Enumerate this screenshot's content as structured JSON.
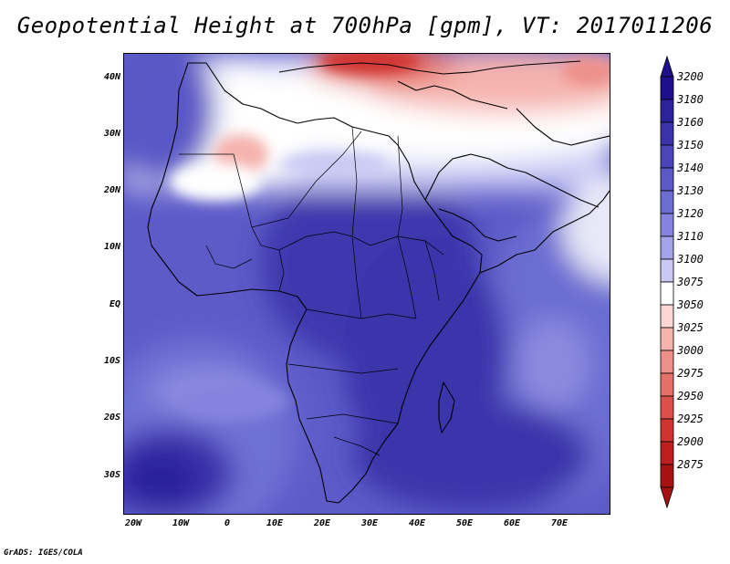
{
  "title": "Geopotential Height at 700hPa [gpm], VT: 2017011206",
  "credit": "GrADS: IGES/COLA",
  "axes": {
    "lat_labels": [
      "40N",
      "30N",
      "20N",
      "10N",
      "EQ",
      "10S",
      "20S",
      "30S"
    ],
    "lat_values": [
      40,
      30,
      20,
      10,
      0,
      -10,
      -20,
      -30
    ],
    "lon_labels": [
      "20W",
      "10W",
      "0",
      "10E",
      "20E",
      "30E",
      "40E",
      "50E",
      "60E",
      "70E"
    ],
    "lon_values": [
      -20,
      -10,
      0,
      10,
      20,
      30,
      40,
      50,
      60,
      70
    ],
    "lat_range": [
      -36,
      45
    ],
    "lon_range": [
      -23,
      80
    ]
  },
  "colorbar": {
    "levels": [
      "3200",
      "3180",
      "3160",
      "3150",
      "3140",
      "3130",
      "3120",
      "3110",
      "3100",
      "3075",
      "3050",
      "3025",
      "3000",
      "2975",
      "2950",
      "2925",
      "2900",
      "2875"
    ],
    "colors": [
      "#1e0f8c",
      "#2b229c",
      "#3a33ab",
      "#4a46ba",
      "#5a59c6",
      "#6c6dd2",
      "#8484de",
      "#a3a3ea",
      "#c9c9f4",
      "#ffffff",
      "#fbd6d3",
      "#f5b3ae",
      "#ee908a",
      "#e56f69",
      "#dc4f4a",
      "#cf3430",
      "#bd1e1e",
      "#a61212"
    ]
  }
}
